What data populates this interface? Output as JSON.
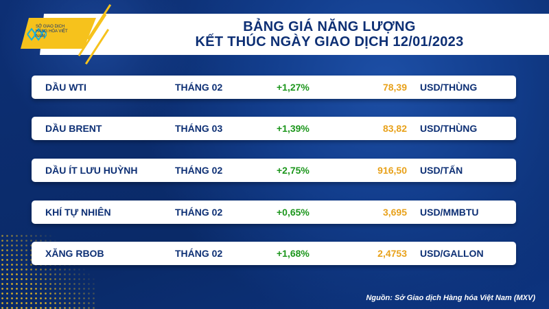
{
  "logo": {
    "text": "SỞ GIAO DỊCH HÀNG HÓA VIỆT NAM",
    "accent": "#f6c21c"
  },
  "header": {
    "title_line1": "BẢNG GIÁ NĂNG LƯỢNG",
    "title_line2": "KẾT THÚC NGÀY GIAO DỊCH 12/01/2023"
  },
  "rows": [
    {
      "name": "DẦU WTI",
      "month": "THÁNG 02",
      "change": "+1,27%",
      "price": "78,39",
      "unit": "USD/THÙNG"
    },
    {
      "name": "DẦU BRENT",
      "month": "THÁNG 03",
      "change": "+1,39%",
      "price": "83,82",
      "unit": "USD/THÙNG"
    },
    {
      "name": "DẦU ÍT LƯU HUỲNH",
      "month": "THÁNG 02",
      "change": "+2,75%",
      "price": "916,50",
      "unit": "USD/TẤN"
    },
    {
      "name": "KHÍ TỰ NHIÊN",
      "month": "THÁNG 02",
      "change": "+0,65%",
      "price": "3,695",
      "unit": "USD/MMBTU"
    },
    {
      "name": "XĂNG RBOB",
      "month": "THÁNG 02",
      "change": "+1,68%",
      "price": "2,4753",
      "unit": "USD/GALLON"
    }
  ],
  "colors": {
    "background": "#0d2f74",
    "positive": "#1c961c",
    "price": "#e8a11a"
  },
  "footer": {
    "source": "Nguồn: Sở Giao dịch Hàng hóa Việt Nam (MXV)"
  }
}
